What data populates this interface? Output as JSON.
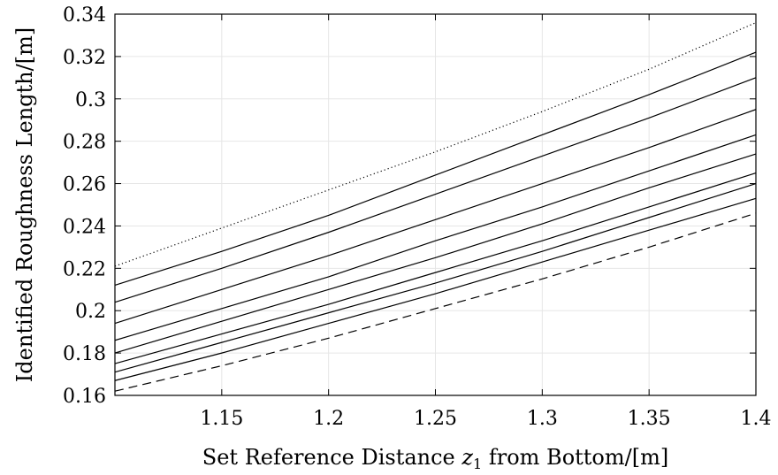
{
  "chart_data": {
    "type": "line",
    "title": "",
    "xlabel": "Set Reference Distance z1 from Bottom/[m]",
    "xlabel_parts": {
      "pre": "Set Reference Distance ",
      "var": "z",
      "sub": "1",
      "post": " from Bottom/[m]"
    },
    "ylabel": "Identified Roughness Length/[m]",
    "xlim": [
      1.1,
      1.4
    ],
    "ylim": [
      0.16,
      0.34
    ],
    "grid": true,
    "x_ticks": [
      1.15,
      1.2,
      1.25,
      1.3,
      1.35,
      1.4
    ],
    "x_tick_labels": [
      "1.15",
      "1.2",
      "1.25",
      "1.3",
      "1.35",
      "1.4"
    ],
    "y_ticks": [
      0.16,
      0.18,
      0.2,
      0.22,
      0.24,
      0.26,
      0.28,
      0.3,
      0.32,
      0.34
    ],
    "y_tick_labels": [
      "0.16",
      "0.18",
      "0.2",
      "0.22",
      "0.24",
      "0.26",
      "0.28",
      "0.3",
      "0.32",
      "0.34"
    ],
    "x": [
      1.1,
      1.15,
      1.2,
      1.25,
      1.3,
      1.35,
      1.4
    ],
    "series": [
      {
        "style": "dotted",
        "values": [
          0.221,
          0.239,
          0.257,
          0.275,
          0.294,
          0.314,
          0.336
        ]
      },
      {
        "style": "solid",
        "values": [
          0.212,
          0.228,
          0.245,
          0.264,
          0.283,
          0.302,
          0.322
        ]
      },
      {
        "style": "solid",
        "values": [
          0.204,
          0.22,
          0.237,
          0.255,
          0.273,
          0.291,
          0.31
        ]
      },
      {
        "style": "solid",
        "values": [
          0.194,
          0.21,
          0.226,
          0.243,
          0.26,
          0.277,
          0.295
        ]
      },
      {
        "style": "solid",
        "values": [
          0.186,
          0.201,
          0.216,
          0.233,
          0.249,
          0.266,
          0.283
        ]
      },
      {
        "style": "solid",
        "values": [
          0.18,
          0.195,
          0.21,
          0.225,
          0.241,
          0.258,
          0.274
        ]
      },
      {
        "style": "solid",
        "values": [
          0.175,
          0.189,
          0.203,
          0.218,
          0.233,
          0.249,
          0.265
        ]
      },
      {
        "style": "solid",
        "values": [
          0.171,
          0.185,
          0.199,
          0.213,
          0.228,
          0.244,
          0.26
        ]
      },
      {
        "style": "solid",
        "values": [
          0.167,
          0.18,
          0.194,
          0.208,
          0.223,
          0.238,
          0.253
        ]
      },
      {
        "style": "dashed",
        "values": [
          0.162,
          0.174,
          0.187,
          0.201,
          0.215,
          0.23,
          0.246
        ]
      }
    ]
  }
}
